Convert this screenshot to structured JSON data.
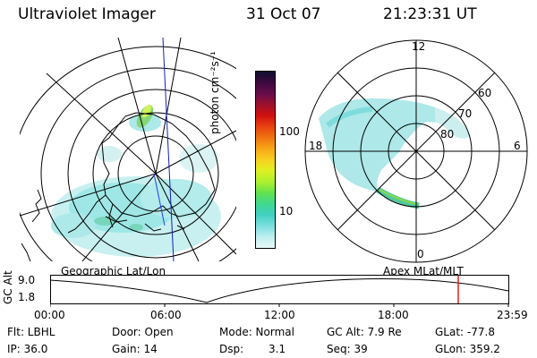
{
  "header": {
    "instrument": "Ultraviolet Imager",
    "date": "31 Oct 07",
    "time": "21:23:31 UT"
  },
  "colorbar": {
    "unit_label": "photon cm⁻²s⁻¹",
    "tick_100": "100",
    "tick_10": "10",
    "colors": [
      "#101030",
      "#3b0a3b",
      "#6a0d4a",
      "#a0102a",
      "#d01010",
      "#e84010",
      "#f07810",
      "#f8a818",
      "#f8d020",
      "#e0f020",
      "#a8f030",
      "#60e050",
      "#40d890",
      "#40d0c0",
      "#80e0e0",
      "#c0f0f0",
      "#e8f8f8"
    ]
  },
  "polar_plot": {
    "hour_labels": {
      "top": "12",
      "left": "18",
      "right": "6",
      "bottom": "0"
    },
    "lat_labels": [
      "60",
      "70",
      "80"
    ]
  },
  "timeline": {
    "left_caption": "Geographic Lat/Lon",
    "right_caption": "Apex MLat/MLT",
    "y_axis_title": "GC Alt",
    "y_top": "9.0",
    "y_bottom": "1.8",
    "x_ticks": [
      "00:00",
      "06:00",
      "12:00",
      "18:00",
      "23:59"
    ],
    "current_marker_color": "#e02020"
  },
  "status": {
    "flt": "Flt: LBHL",
    "ip": "IP: 36.0",
    "door": "Door: Open",
    "gain": "Gain: 14",
    "mode": "Mode: Normal",
    "dsp_label": "Dsp:",
    "dsp_value": "3.1",
    "gc_alt": "GC Alt: 7.9 Re",
    "seq": "Seq: 39",
    "glat": "GLat: -77.8",
    "glon": "GLon: 359.2"
  }
}
